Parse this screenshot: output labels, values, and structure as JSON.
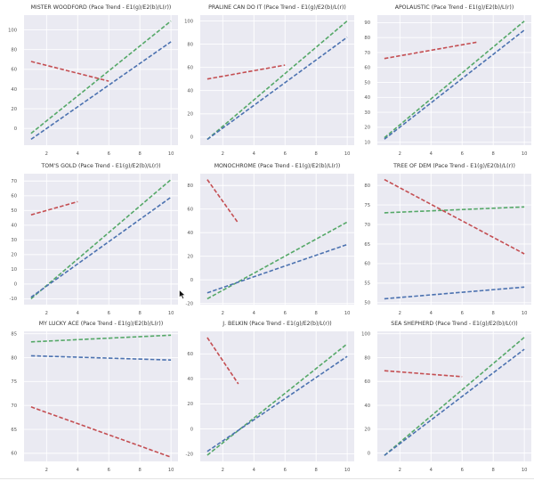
{
  "figure": {
    "background": "#ffffff",
    "plot_background": "#eaeaf2",
    "grid_color": "#ffffff",
    "series_colors": {
      "E1": "#55a868",
      "E2": "#4c72b0",
      "L": "#c44e52"
    },
    "line_style": "dashed"
  },
  "chart_data": [
    {
      "type": "line",
      "title": "MISTER WOODFORD (Pace Trend - E1(g)/E2(b)/L(r))",
      "xlabel": "",
      "ylabel": "",
      "xticks": [
        2,
        4,
        6,
        8,
        10
      ],
      "yticks": [
        0,
        20,
        40,
        60,
        80,
        100
      ],
      "xlim": [
        0.55,
        10.45
      ],
      "ylim": [
        -17,
        115
      ],
      "grid": true,
      "series": [
        {
          "name": "E1",
          "color": "green",
          "x": [
            1,
            10
          ],
          "y": [
            -5,
            109
          ]
        },
        {
          "name": "E2",
          "color": "blue",
          "x": [
            1,
            10
          ],
          "y": [
            -11,
            88
          ]
        },
        {
          "name": "L",
          "color": "red",
          "x": [
            1,
            6
          ],
          "y": [
            68,
            48
          ]
        }
      ]
    },
    {
      "type": "line",
      "title": "PRALINE CAN DO IT (Pace Trend - E1(g)/E2(b)/L(r))",
      "xlabel": "",
      "ylabel": "",
      "xticks": [
        2,
        4,
        6,
        8,
        10
      ],
      "yticks": [
        0,
        20,
        40,
        60,
        80,
        100
      ],
      "xlim": [
        0.55,
        10.45
      ],
      "ylim": [
        -7,
        105
      ],
      "grid": true,
      "series": [
        {
          "name": "E1",
          "color": "green",
          "x": [
            1,
            10
          ],
          "y": [
            -2,
            100
          ]
        },
        {
          "name": "E2",
          "color": "blue",
          "x": [
            1,
            10
          ],
          "y": [
            -2,
            86
          ]
        },
        {
          "name": "L",
          "color": "red",
          "x": [
            1,
            6
          ],
          "y": [
            50,
            62
          ]
        }
      ]
    },
    {
      "type": "line",
      "title": "APOLAUSTIC (Pace Trend - E1(g)/E2(b)/L(r))",
      "xlabel": "",
      "ylabel": "",
      "xticks": [
        2,
        4,
        6,
        8,
        10
      ],
      "yticks": [
        10,
        20,
        30,
        40,
        50,
        60,
        70,
        80,
        90
      ],
      "xlim": [
        0.55,
        10.45
      ],
      "ylim": [
        8,
        95
      ],
      "grid": true,
      "series": [
        {
          "name": "E1",
          "color": "green",
          "x": [
            1,
            10
          ],
          "y": [
            13,
            91
          ]
        },
        {
          "name": "E2",
          "color": "blue",
          "x": [
            1,
            10
          ],
          "y": [
            12,
            85
          ]
        },
        {
          "name": "L",
          "color": "red",
          "x": [
            1,
            7
          ],
          "y": [
            66,
            77
          ]
        }
      ]
    },
    {
      "type": "line",
      "title": "TOM'S GOLD (Pace Trend - E1(g)/E2(b)/L(r))",
      "xlabel": "",
      "ylabel": "",
      "xticks": [
        2,
        4,
        6,
        8,
        10
      ],
      "yticks": [
        -10,
        0,
        10,
        20,
        30,
        40,
        50,
        60,
        70
      ],
      "xlim": [
        0.55,
        10.45
      ],
      "ylim": [
        -14,
        75
      ],
      "grid": true,
      "series": [
        {
          "name": "E1",
          "color": "green",
          "x": [
            1,
            10
          ],
          "y": [
            -10,
            71
          ]
        },
        {
          "name": "E2",
          "color": "blue",
          "x": [
            1,
            10
          ],
          "y": [
            -9,
            59
          ]
        },
        {
          "name": "L",
          "color": "red",
          "x": [
            1,
            4
          ],
          "y": [
            47,
            56
          ]
        }
      ]
    },
    {
      "type": "line",
      "title": "MONOCHROME (Pace Trend - E1(g)/E2(b)/L(r))",
      "xlabel": "",
      "ylabel": "",
      "xticks": [
        2,
        4,
        6,
        8,
        10
      ],
      "yticks": [
        -20,
        0,
        20,
        40,
        60,
        80
      ],
      "xlim": [
        0.55,
        10.45
      ],
      "ylim": [
        -21,
        90
      ],
      "grid": true,
      "series": [
        {
          "name": "E1",
          "color": "green",
          "x": [
            1,
            10
          ],
          "y": [
            -16,
            49
          ]
        },
        {
          "name": "E2",
          "color": "blue",
          "x": [
            1,
            10
          ],
          "y": [
            -11,
            30
          ]
        },
        {
          "name": "L",
          "color": "red",
          "x": [
            1,
            3
          ],
          "y": [
            85,
            48
          ]
        }
      ]
    },
    {
      "type": "line",
      "title": "TREE OF DEM (Pace Trend - E1(g)/E2(b)/L(r))",
      "xlabel": "",
      "ylabel": "",
      "xticks": [
        2,
        4,
        6,
        8,
        10
      ],
      "yticks": [
        50,
        55,
        60,
        65,
        70,
        75,
        80
      ],
      "xlim": [
        0.55,
        10.45
      ],
      "ylim": [
        49.5,
        83
      ],
      "grid": true,
      "series": [
        {
          "name": "E1",
          "color": "green",
          "x": [
            1,
            10
          ],
          "y": [
            73,
            74.5
          ]
        },
        {
          "name": "E2",
          "color": "blue",
          "x": [
            1,
            10
          ],
          "y": [
            51,
            54
          ]
        },
        {
          "name": "L",
          "color": "red",
          "x": [
            1,
            10
          ],
          "y": [
            81.5,
            62.5
          ]
        }
      ]
    },
    {
      "type": "line",
      "title": "MY LUCKY ACE (Pace Trend - E1(g)/E2(b)/L(r))",
      "xlabel": "",
      "ylabel": "",
      "xticks": [
        2,
        4,
        6,
        8,
        10
      ],
      "yticks": [
        60,
        65,
        70,
        75,
        80,
        85
      ],
      "xlim": [
        0.55,
        10.45
      ],
      "ylim": [
        58.3,
        85.5
      ],
      "grid": true,
      "series": [
        {
          "name": "E1",
          "color": "green",
          "x": [
            1,
            10
          ],
          "y": [
            83.3,
            84.7
          ]
        },
        {
          "name": "E2",
          "color": "blue",
          "x": [
            1,
            10
          ],
          "y": [
            80.4,
            79.5
          ]
        },
        {
          "name": "L",
          "color": "red",
          "x": [
            1,
            10
          ],
          "y": [
            69.7,
            59.2
          ]
        }
      ]
    },
    {
      "type": "line",
      "title": "J. BELKIN (Pace Trend - E1(g)/E2(b)/L(r))",
      "xlabel": "",
      "ylabel": "",
      "xticks": [
        2,
        4,
        6,
        8,
        10
      ],
      "yticks": [
        -20,
        0,
        20,
        40,
        60
      ],
      "xlim": [
        0.55,
        10.45
      ],
      "ylim": [
        -26,
        78
      ],
      "grid": true,
      "series": [
        {
          "name": "E1",
          "color": "green",
          "x": [
            1,
            10
          ],
          "y": [
            -21,
            68
          ]
        },
        {
          "name": "E2",
          "color": "blue",
          "x": [
            1,
            10
          ],
          "y": [
            -18,
            58
          ]
        },
        {
          "name": "L",
          "color": "red",
          "x": [
            1,
            3
          ],
          "y": [
            73,
            36
          ]
        }
      ]
    },
    {
      "type": "line",
      "title": "SEA SHEPHERD (Pace Trend - E1(g)/E2(b)/L(r))",
      "xlabel": "",
      "ylabel": "",
      "xticks": [
        2,
        4,
        6,
        8,
        10
      ],
      "yticks": [
        0,
        20,
        40,
        60,
        80,
        100
      ],
      "xlim": [
        0.55,
        10.45
      ],
      "ylim": [
        -7,
        102
      ],
      "grid": true,
      "series": [
        {
          "name": "E1",
          "color": "green",
          "x": [
            1,
            10
          ],
          "y": [
            -2,
            97
          ]
        },
        {
          "name": "E2",
          "color": "blue",
          "x": [
            1,
            10
          ],
          "y": [
            -2,
            87
          ]
        },
        {
          "name": "L",
          "color": "red",
          "x": [
            1,
            6
          ],
          "y": [
            69,
            64
          ]
        }
      ]
    }
  ]
}
